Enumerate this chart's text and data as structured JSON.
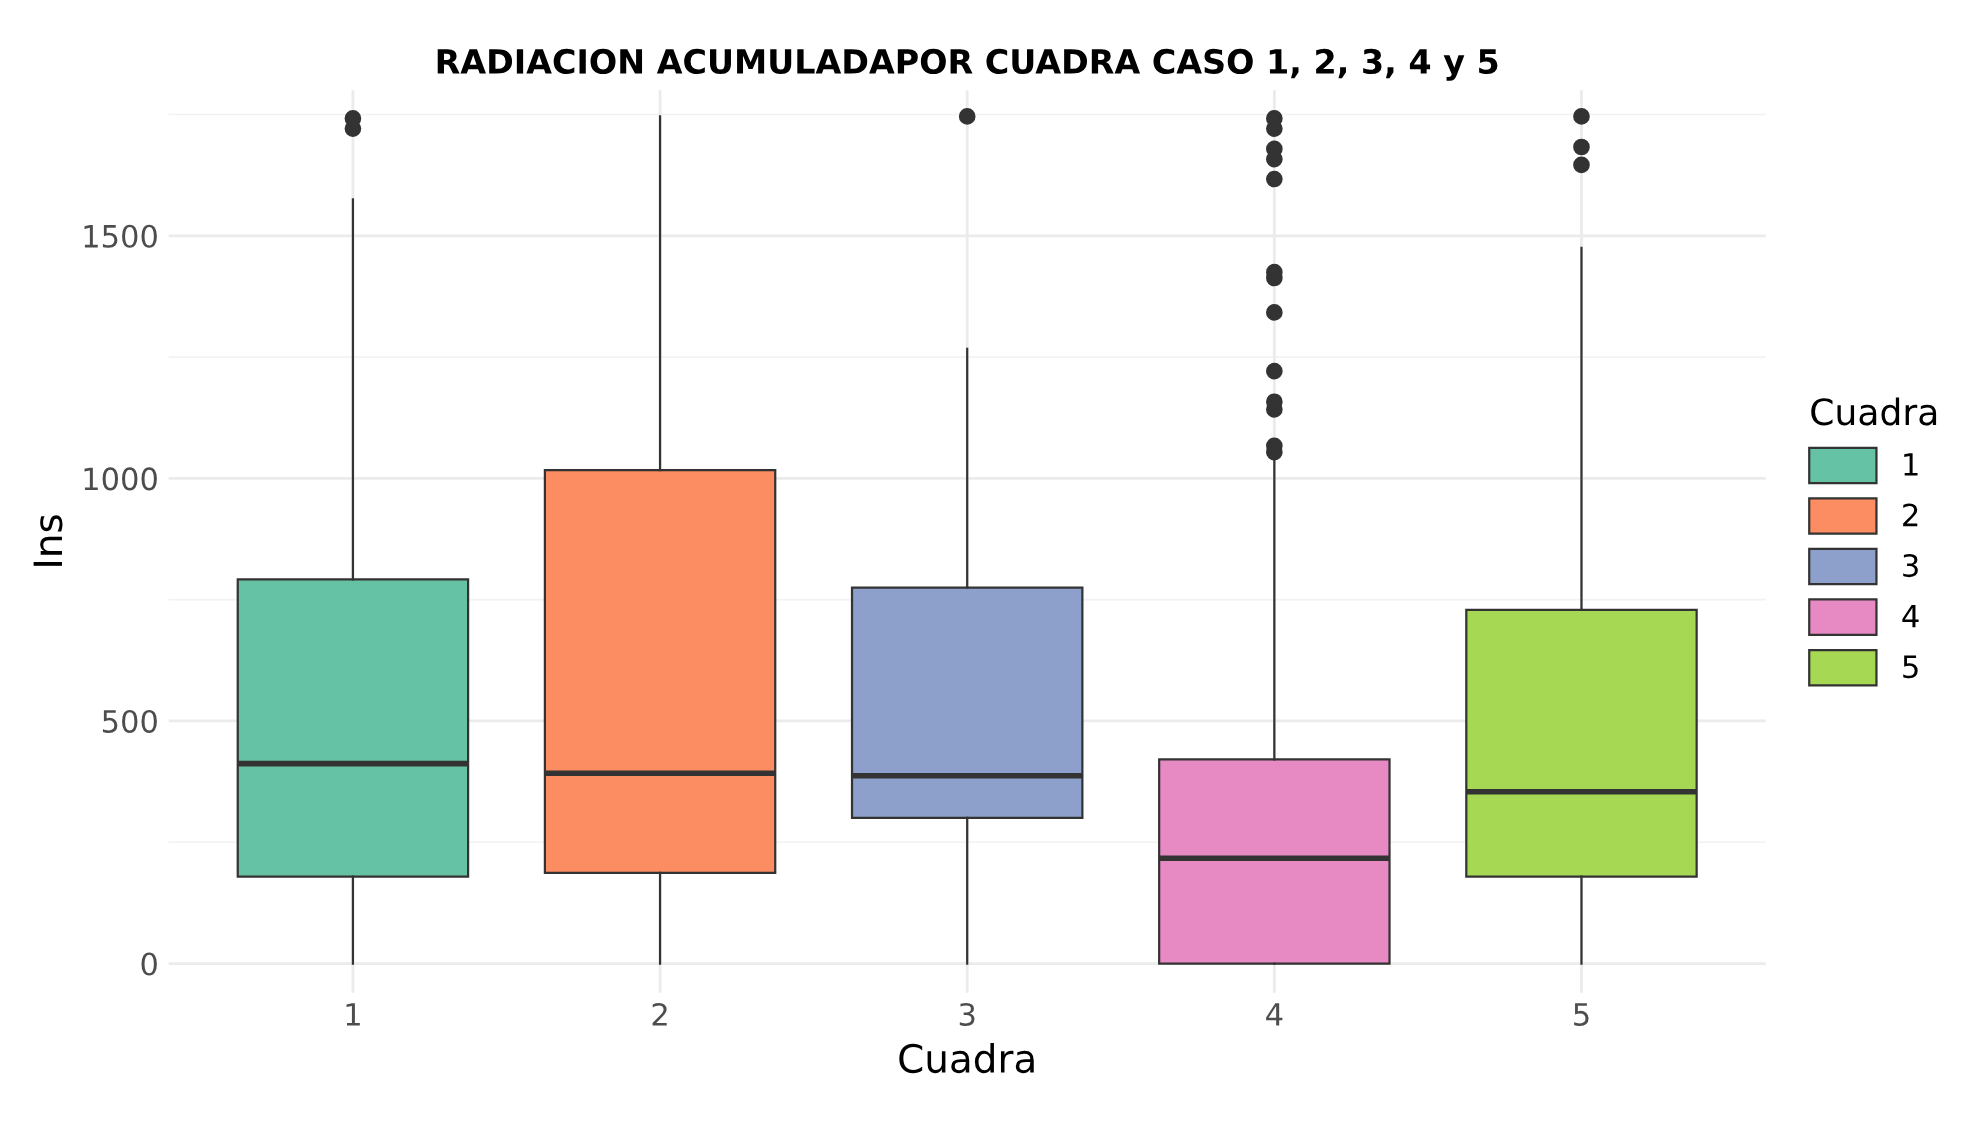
{
  "chart_data": {
    "type": "box",
    "title": "RADIACION ACUMULADAPOR CUADRA CASO 1, 2, 3, 4 y 5",
    "xlabel": "Cuadra",
    "ylabel": "Ins",
    "legend_title": "Cuadra",
    "categories": [
      "1",
      "2",
      "3",
      "4",
      "5"
    ],
    "series": [
      {
        "name": "1",
        "color": "#66c2a5",
        "boxes": [
          {
            "low": 0,
            "q1": 179,
            "median": 412,
            "q3": 792,
            "high": 1575,
            "outliers": [
              1721,
              1742
            ]
          },
          null,
          null,
          null,
          null
        ]
      },
      {
        "name": "2",
        "color": "#fc8d62",
        "boxes": [
          null,
          {
            "low": 0,
            "q1": 187,
            "median": 392,
            "q3": 1017,
            "high": 1746
          },
          null,
          null,
          null
        ]
      },
      {
        "name": "3",
        "color": "#8da0cb",
        "boxes": [
          null,
          null,
          {
            "low": 0,
            "q1": 300,
            "median": 387,
            "q3": 775,
            "high": 1267,
            "outliers": [
              1746
            ]
          },
          null,
          null
        ]
      },
      {
        "name": "4",
        "color": "#e78ac3",
        "boxes": [
          null,
          null,
          null,
          {
            "low": 0,
            "q1": 0,
            "median": 217,
            "q3": 421,
            "high": 1042,
            "outliers": [
              1054,
              1067,
              1142,
              1158,
              1221,
              1342,
              1413,
              1425,
              1617,
              1658,
              1679,
              1721,
              1742
            ]
          },
          null
        ]
      },
      {
        "name": "5",
        "color": "#a6d854",
        "boxes": [
          null,
          null,
          null,
          null,
          {
            "low": 0,
            "q1": 179,
            "median": 354,
            "q3": 729,
            "high": 1475,
            "outliers": [
              1646,
              1683,
              1746
            ]
          }
        ]
      }
    ],
    "ylim": [
      -60,
      1800
    ],
    "yticks": [
      0,
      500,
      1000,
      1500
    ],
    "grid": true,
    "legend": "right"
  }
}
